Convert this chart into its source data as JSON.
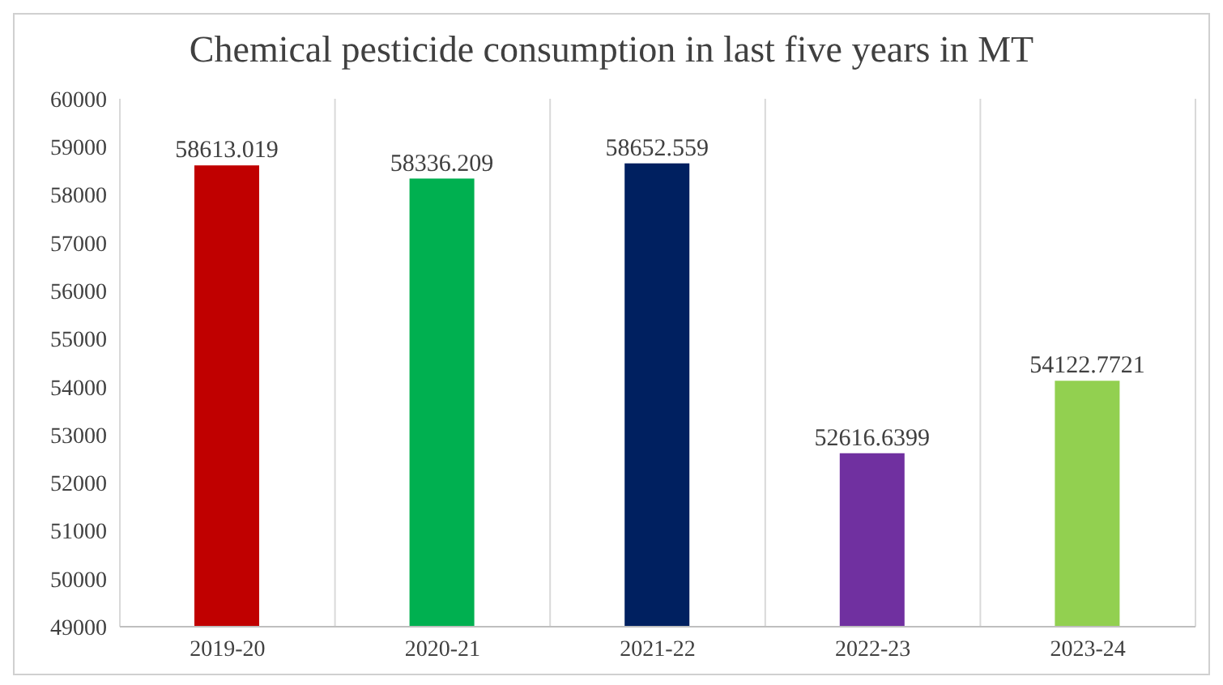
{
  "chart_data": {
    "type": "bar",
    "title": "Chemical pesticide consumption in last five years in MT",
    "categories": [
      "2019-20",
      "2020-21",
      "2021-22",
      "2022-23",
      "2023-24"
    ],
    "values": [
      58613.019,
      58336.209,
      58652.559,
      52616.6399,
      54122.7721
    ],
    "colors": [
      "#c00000",
      "#00b050",
      "#002060",
      "#7030a0",
      "#92d050"
    ],
    "ylim": [
      49000,
      60000
    ],
    "yticks": [
      49000,
      50000,
      51000,
      52000,
      53000,
      54000,
      55000,
      56000,
      57000,
      58000,
      59000,
      60000
    ],
    "grid": "x",
    "data_labels": true
  }
}
